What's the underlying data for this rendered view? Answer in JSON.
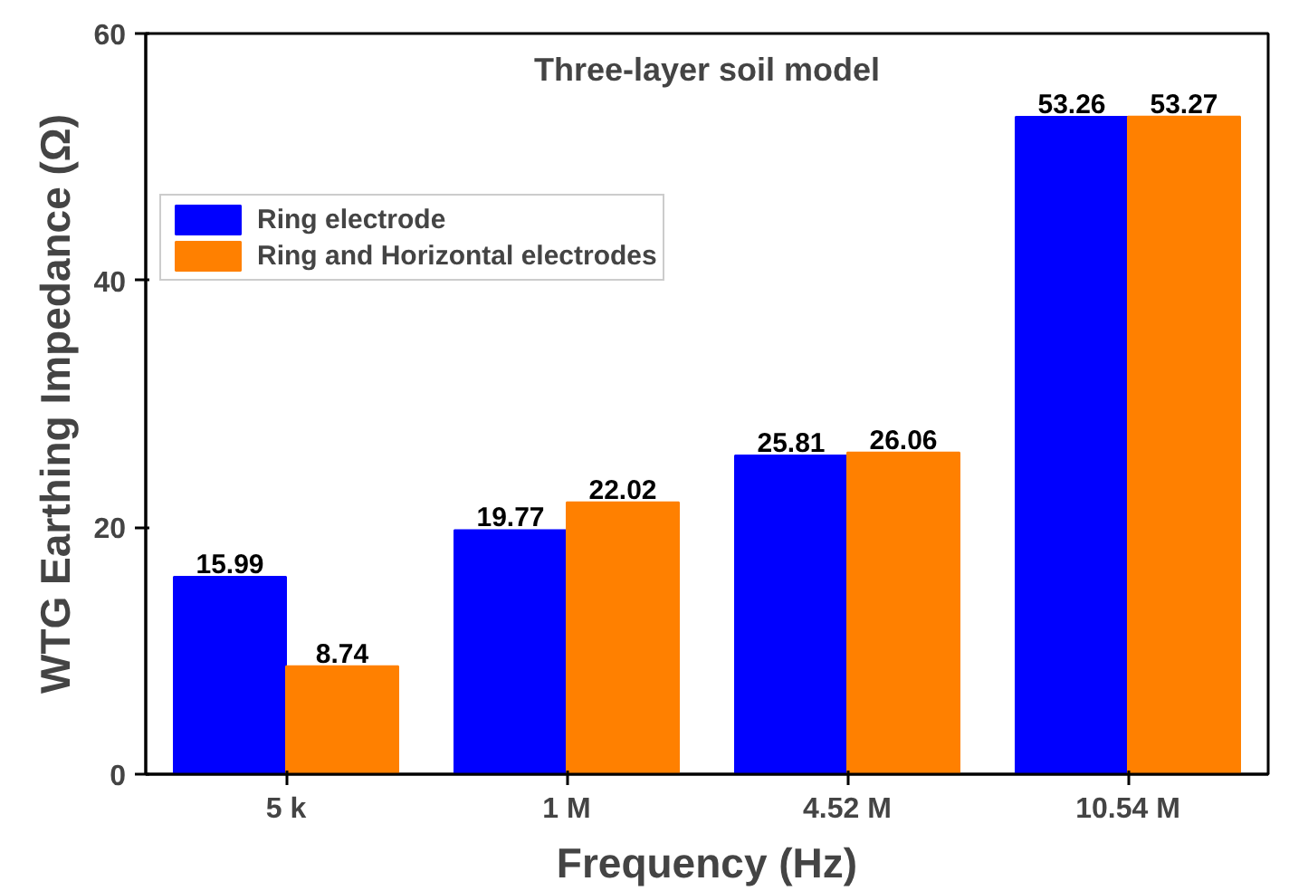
{
  "chart_data": {
    "type": "bar",
    "title": "Three-layer soil model",
    "xlabel": "Frequency (Hz)",
    "ylabel": "WTG Earthing Impedance (Ω)",
    "categories": [
      "5 k",
      "1 M",
      "4.52 M",
      "10.54 M"
    ],
    "series": [
      {
        "name": "Ring electrode",
        "color": "#0000ff",
        "values": [
          15.99,
          19.77,
          25.81,
          53.26
        ]
      },
      {
        "name": "Ring and Horizontal electrodes",
        "color": "#ff8000",
        "values": [
          8.74,
          22.02,
          26.06,
          53.27
        ]
      }
    ],
    "ylim": [
      0,
      60
    ],
    "yticks": [
      0,
      20,
      40,
      60
    ],
    "data_labels": true,
    "grid": false,
    "legend": "top left"
  }
}
